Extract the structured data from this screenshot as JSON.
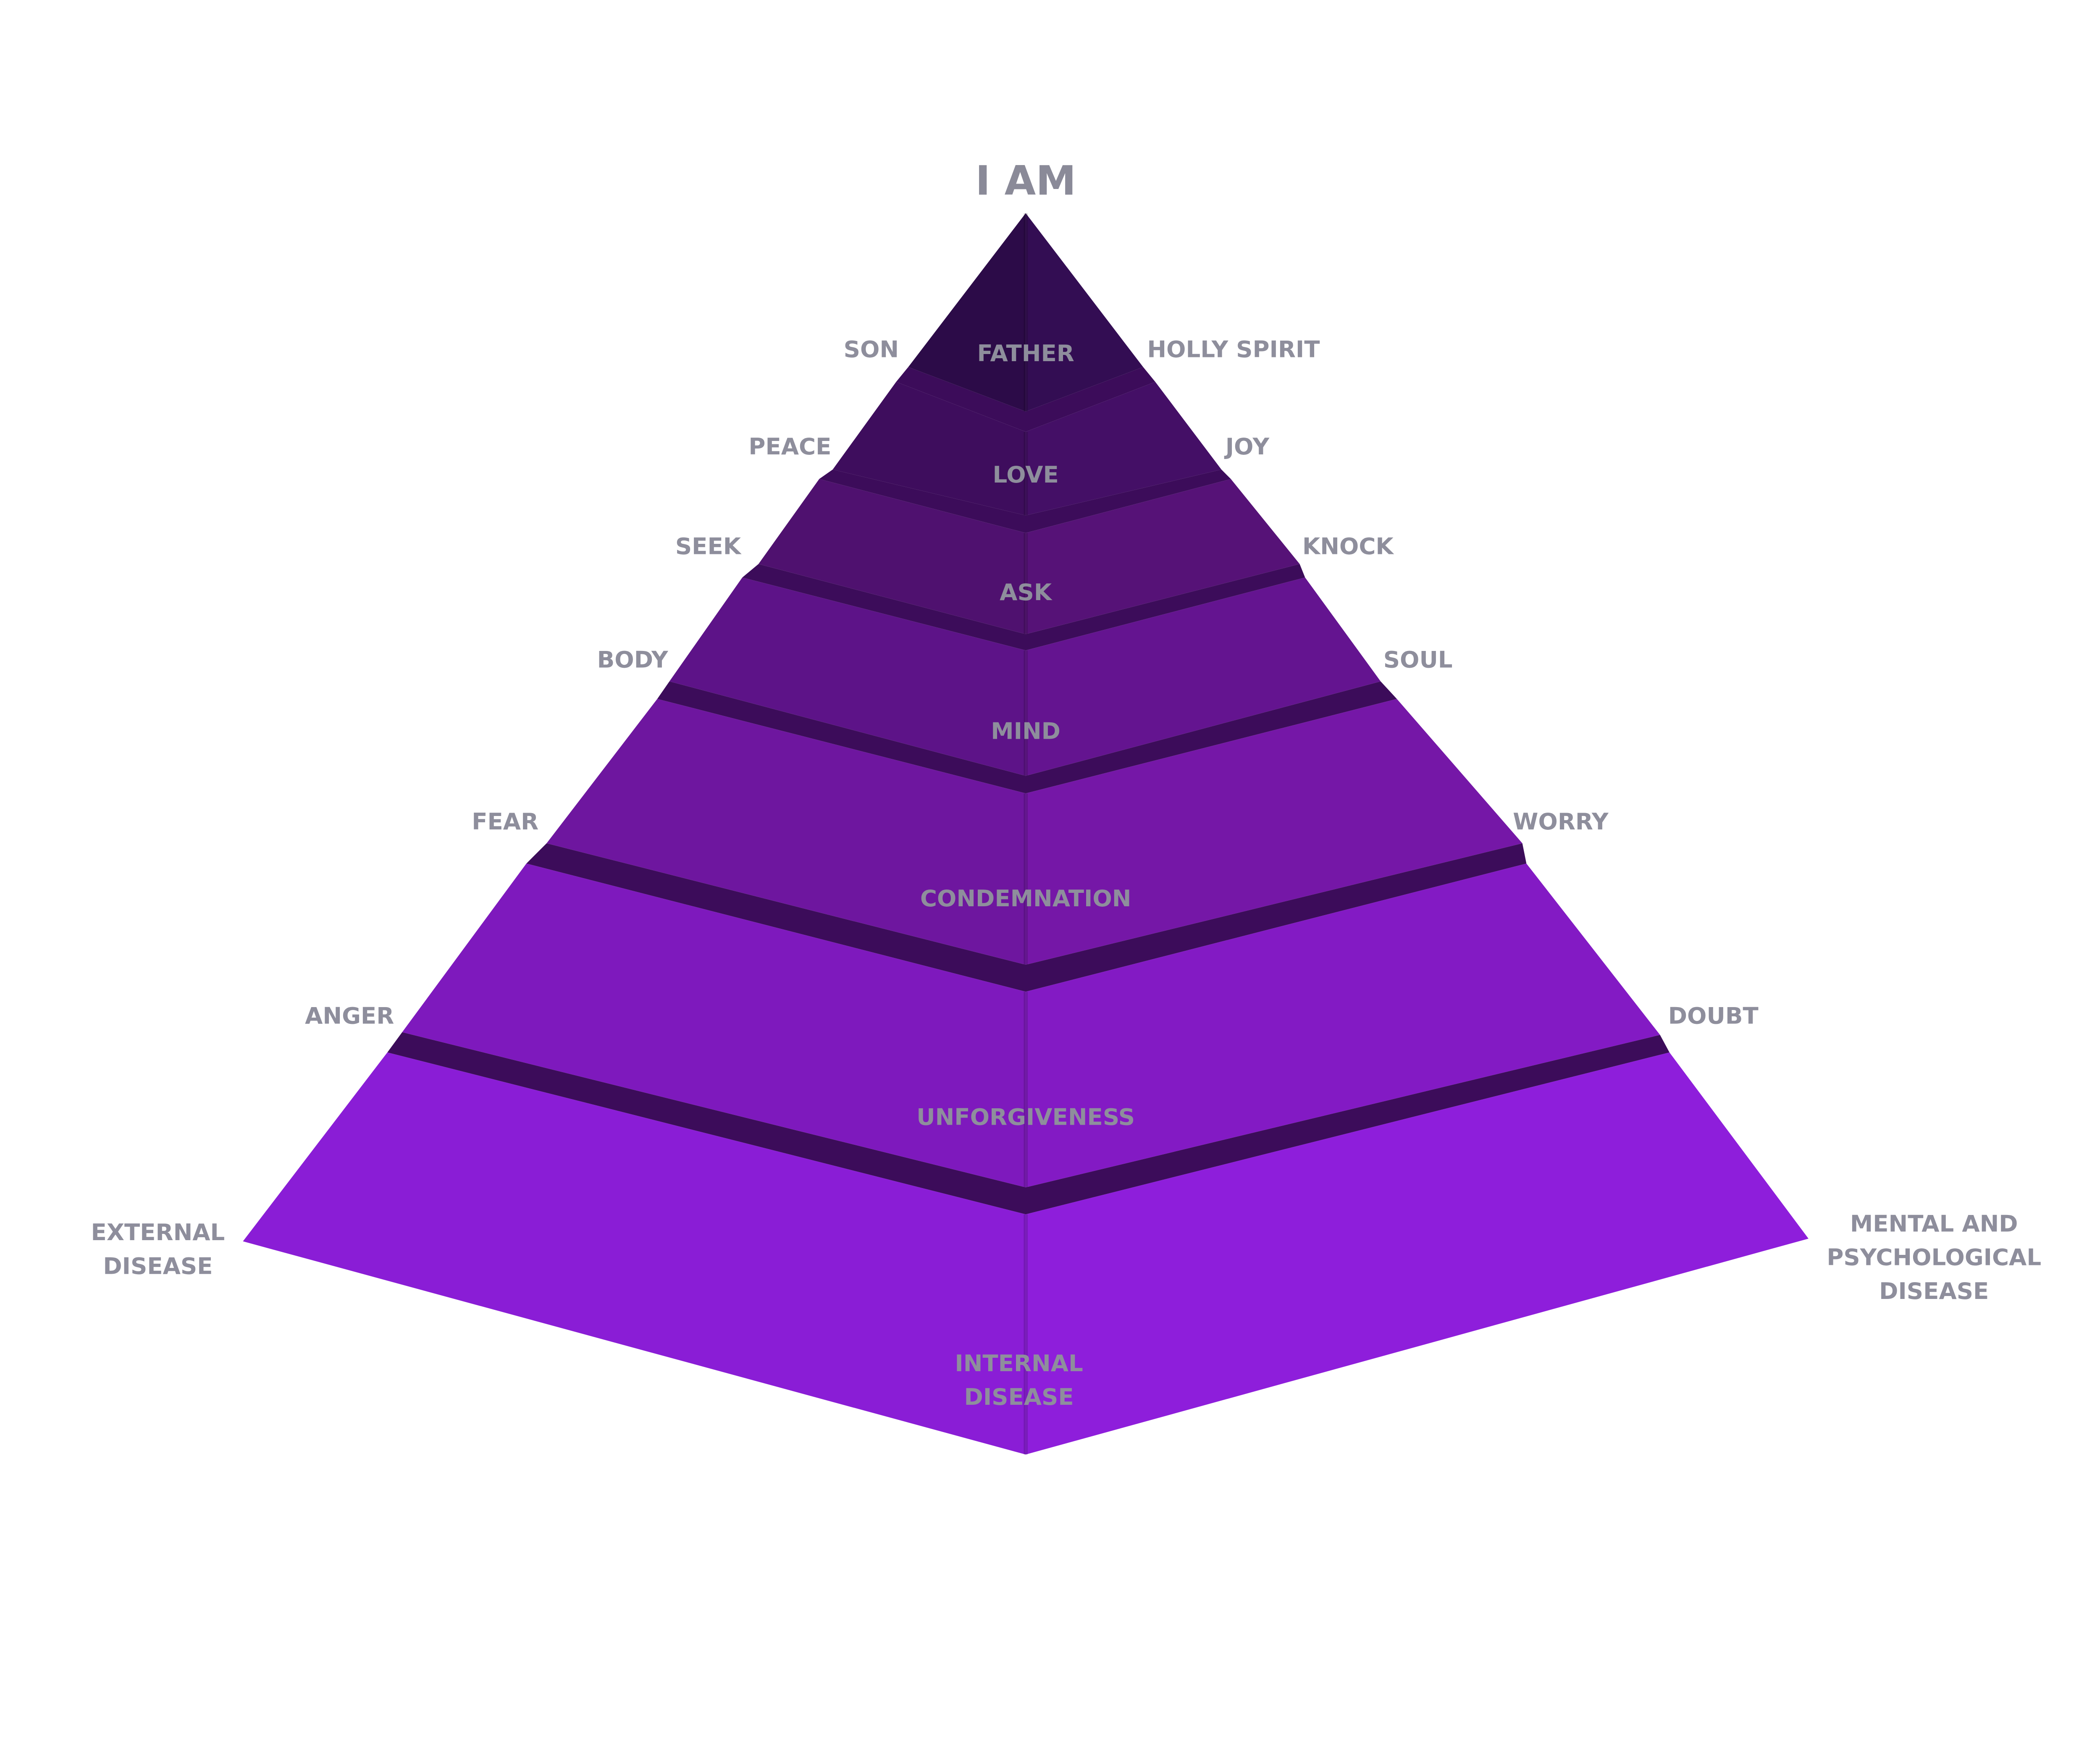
{
  "title": "I AM",
  "levels": [
    {
      "center": [
        "FATHER"
      ],
      "left": [
        "SON"
      ],
      "right": [
        "HOLLY SPIRIT"
      ]
    },
    {
      "center": [
        "LOVE"
      ],
      "left": [
        "PEACE"
      ],
      "right": [
        "JOY"
      ]
    },
    {
      "center": [
        "ASK"
      ],
      "left": [
        "SEEK"
      ],
      "right": [
        "KNOCK"
      ]
    },
    {
      "center": [
        "MIND"
      ],
      "left": [
        "BODY"
      ],
      "right": [
        "SOUL"
      ]
    },
    {
      "center": [
        "CONDEMNATION"
      ],
      "left": [
        "FEAR"
      ],
      "right": [
        "WORRY"
      ]
    },
    {
      "center": [
        "UNFORGIVENESS"
      ],
      "left": [
        "ANGER"
      ],
      "right": [
        "DOUBT"
      ]
    },
    {
      "center": [
        "INTERNAL",
        "DISEASE"
      ],
      "left": [
        "EXTERNAL",
        "DISEASE"
      ],
      "right": [
        "MENTAL AND",
        "PSYCHOLOGICAL",
        "DISEASE"
      ]
    }
  ]
}
